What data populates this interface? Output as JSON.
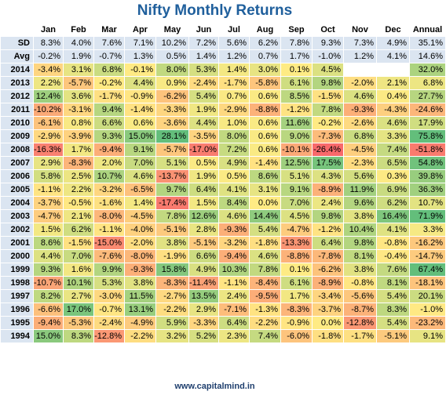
{
  "title": "Nifty Monthly Returns",
  "footer": "www.capitalmind.in",
  "columns": [
    "Jan",
    "Feb",
    "Mar",
    "Apr",
    "May",
    "Jun",
    "Jul",
    "Aug",
    "Sep",
    "Oct",
    "Nov",
    "Dec",
    "Annual"
  ],
  "stat_rows": [
    {
      "label": "SD",
      "values": [
        "8.3%",
        "4.0%",
        "7.6%",
        "7.1%",
        "10.2%",
        "7.2%",
        "5.6%",
        "6.2%",
        "7.8%",
        "9.3%",
        "7.3%",
        "4.9%",
        "35.1%"
      ]
    },
    {
      "label": "Avg",
      "values": [
        "-0.2%",
        "1.9%",
        "-0.7%",
        "1.3%",
        "0.5%",
        "1.4%",
        "1.2%",
        "0.7%",
        "1.7%",
        "-1.0%",
        "1.2%",
        "4.1%",
        "14.6%"
      ]
    }
  ],
  "year_rows": [
    {
      "label": "2014",
      "values": [
        "-3.4%",
        "3.1%",
        "6.8%",
        "-0.1%",
        "8.0%",
        "5.3%",
        "1.4%",
        "3.0%",
        "0.1%",
        "4.5%",
        "",
        "",
        "32.0%"
      ]
    },
    {
      "label": "2013",
      "values": [
        "2.2%",
        "-5.7%",
        "-0.2%",
        "4.4%",
        "0.9%",
        "-2.4%",
        "-1.7%",
        "-5.8%",
        "6.1%",
        "9.8%",
        "-2.0%",
        "2.1%",
        "6.8%"
      ]
    },
    {
      "label": "2012",
      "values": [
        "12.4%",
        "3.6%",
        "-1.7%",
        "-0.9%",
        "-6.2%",
        "5.4%",
        "0.7%",
        "0.6%",
        "8.5%",
        "-1.5%",
        "4.6%",
        "0.4%",
        "27.7%"
      ]
    },
    {
      "label": "2011",
      "values": [
        "-10.2%",
        "-3.1%",
        "9.4%",
        "-1.4%",
        "-3.3%",
        "1.9%",
        "-2.9%",
        "-8.8%",
        "-1.2%",
        "7.8%",
        "-9.3%",
        "-4.3%",
        "-24.6%"
      ]
    },
    {
      "label": "2010",
      "values": [
        "-6.1%",
        "0.8%",
        "6.6%",
        "0.6%",
        "-3.6%",
        "4.4%",
        "1.0%",
        "0.6%",
        "11.6%",
        "-0.2%",
        "-2.6%",
        "4.6%",
        "17.9%"
      ]
    },
    {
      "label": "2009",
      "values": [
        "-2.9%",
        "-3.9%",
        "9.3%",
        "15.0%",
        "28.1%",
        "-3.5%",
        "8.0%",
        "0.6%",
        "9.0%",
        "-7.3%",
        "6.8%",
        "3.3%",
        "75.8%"
      ]
    },
    {
      "label": "2008",
      "values": [
        "-16.3%",
        "1.7%",
        "-9.4%",
        "9.1%",
        "-5.7%",
        "-17.0%",
        "7.2%",
        "0.6%",
        "-10.1%",
        "-26.4%",
        "-4.5%",
        "7.4%",
        "-51.8%"
      ]
    },
    {
      "label": "2007",
      "values": [
        "2.9%",
        "-8.3%",
        "2.0%",
        "7.0%",
        "5.1%",
        "0.5%",
        "4.9%",
        "-1.4%",
        "12.5%",
        "17.5%",
        "-2.3%",
        "6.5%",
        "54.8%"
      ]
    },
    {
      "label": "2006",
      "values": [
        "5.8%",
        "2.5%",
        "10.7%",
        "4.6%",
        "-13.7%",
        "1.9%",
        "0.5%",
        "8.6%",
        "5.1%",
        "4.3%",
        "5.6%",
        "0.3%",
        "39.8%"
      ]
    },
    {
      "label": "2005",
      "values": [
        "-1.1%",
        "2.2%",
        "-3.2%",
        "-6.5%",
        "9.7%",
        "6.4%",
        "4.1%",
        "3.1%",
        "9.1%",
        "-8.9%",
        "11.9%",
        "6.9%",
        "36.3%"
      ]
    },
    {
      "label": "2004",
      "values": [
        "-3.7%",
        "-0.5%",
        "-1.6%",
        "1.4%",
        "-17.4%",
        "1.5%",
        "8.4%",
        "0.0%",
        "7.0%",
        "2.4%",
        "9.6%",
        "6.2%",
        "10.7%"
      ]
    },
    {
      "label": "2003",
      "values": [
        "-4.7%",
        "2.1%",
        "-8.0%",
        "-4.5%",
        "7.8%",
        "12.6%",
        "4.6%",
        "14.4%",
        "4.5%",
        "9.8%",
        "3.8%",
        "16.4%",
        "71.9%"
      ]
    },
    {
      "label": "2002",
      "values": [
        "1.5%",
        "6.2%",
        "-1.1%",
        "-4.0%",
        "-5.1%",
        "2.8%",
        "-9.3%",
        "5.4%",
        "-4.7%",
        "-1.2%",
        "10.4%",
        "4.1%",
        "3.3%"
      ]
    },
    {
      "label": "2001",
      "values": [
        "8.6%",
        "-1.5%",
        "-15.0%",
        "-2.0%",
        "3.8%",
        "-5.1%",
        "-3.2%",
        "-1.8%",
        "-13.3%",
        "6.4%",
        "9.8%",
        "-0.8%",
        "-16.2%"
      ]
    },
    {
      "label": "2000",
      "values": [
        "4.4%",
        "7.0%",
        "-7.6%",
        "-8.0%",
        "-1.9%",
        "6.6%",
        "-9.4%",
        "4.6%",
        "-8.8%",
        "-7.8%",
        "8.1%",
        "-0.4%",
        "-14.7%"
      ]
    },
    {
      "label": "1999",
      "values": [
        "9.3%",
        "1.6%",
        "9.9%",
        "-9.3%",
        "15.8%",
        "4.9%",
        "10.3%",
        "7.8%",
        "0.1%",
        "-6.2%",
        "3.8%",
        "7.6%",
        "67.4%"
      ]
    },
    {
      "label": "1998",
      "values": [
        "-10.7%",
        "10.1%",
        "5.3%",
        "3.8%",
        "-8.3%",
        "-11.4%",
        "-1.1%",
        "-8.4%",
        "6.1%",
        "-8.9%",
        "-0.8%",
        "8.1%",
        "-18.1%"
      ]
    },
    {
      "label": "1997",
      "values": [
        "8.2%",
        "2.7%",
        "-3.0%",
        "11.5%",
        "-2.7%",
        "13.5%",
        "2.4%",
        "-9.5%",
        "1.7%",
        "-3.4%",
        "-5.6%",
        "5.4%",
        "20.1%"
      ]
    },
    {
      "label": "1996",
      "values": [
        "-6.6%",
        "17.0%",
        "-0.7%",
        "13.1%",
        "-2.2%",
        "2.9%",
        "-7.1%",
        "-1.3%",
        "-8.3%",
        "-3.7%",
        "-8.7%",
        "8.3%",
        "-1.0%"
      ]
    },
    {
      "label": "1995",
      "values": [
        "-9.4%",
        "-5.3%",
        "-2.4%",
        "-4.9%",
        "5.9%",
        "-3.3%",
        "6.4%",
        "-2.2%",
        "-0.9%",
        "0.0%",
        "-12.8%",
        "5.4%",
        "-23.2%"
      ]
    },
    {
      "label": "1994",
      "values": [
        "15.0%",
        "8.3%",
        "-12.8%",
        "-2.2%",
        "3.2%",
        "5.2%",
        "2.3%",
        "7.4%",
        "-6.0%",
        "-1.8%",
        "-1.7%",
        "-5.1%",
        "9.1%"
      ]
    }
  ]
}
